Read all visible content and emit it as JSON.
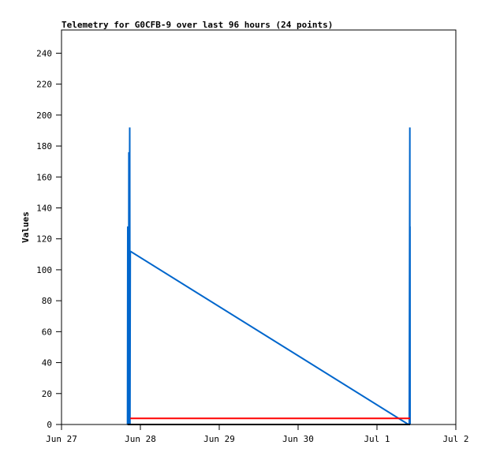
{
  "chart_data": {
    "type": "line",
    "title": "Telemetry for G0CFB-9 over last 96 hours (24 points)",
    "xlabel": "",
    "ylabel": "Values",
    "ylim": [
      0,
      255
    ],
    "yticks": [
      0,
      20,
      40,
      60,
      80,
      100,
      120,
      140,
      160,
      180,
      200,
      220,
      240
    ],
    "xlim": [
      "Jun 27 00:00",
      "Jul 2 00:00"
    ],
    "xticks": [
      {
        "label": "Jun 27",
        "t": "Jun 27 00:00"
      },
      {
        "label": "Jun 28",
        "t": "Jun 28 00:00"
      },
      {
        "label": "Jun 29",
        "t": "Jun 29 00:00"
      },
      {
        "label": "Jun 30",
        "t": "Jun 30 00:00"
      },
      {
        "label": "Jul 1",
        "t": "Jul 1 00:00"
      },
      {
        "label": "Jul 2",
        "t": "Jul 2 00:00"
      }
    ],
    "grid": false,
    "series": [
      {
        "color": "#0066cc",
        "points": [
          [
            "Jun 27 20:05",
            0
          ],
          [
            "Jun 27 20:10",
            128
          ],
          [
            "Jun 27 20:15",
            0
          ],
          [
            "Jun 27 20:20",
            112
          ],
          [
            "Jun 27 20:25",
            0
          ],
          [
            "Jun 27 20:30",
            176
          ],
          [
            "Jun 27 20:35",
            0
          ],
          [
            "Jun 27 20:40",
            112
          ],
          [
            "Jun 27 20:45",
            192
          ],
          [
            "Jun 27 20:50",
            0
          ],
          [
            "Jun 27 20:55",
            112
          ],
          [
            "Jul 1 09:36",
            0
          ],
          [
            "Jul 1 09:50",
            0
          ],
          [
            "Jul 1 10:00",
            192
          ],
          [
            "Jul 1 10:01",
            0
          ],
          [
            "Jul 1 10:02",
            128
          ],
          [
            "Jul 1 10:03",
            32
          ],
          [
            "Jul 1 10:04",
            128
          ],
          [
            "Jul 1 10:05",
            0
          ]
        ]
      },
      {
        "color": "#ff0000",
        "points": [
          [
            "Jun 27 20:55",
            4
          ],
          [
            "Jul 1 10:05",
            4
          ]
        ]
      },
      {
        "color": "#000000",
        "points": [
          [
            "Jun 27 20:05",
            0
          ],
          [
            "Jul 1 10:05",
            0
          ]
        ]
      }
    ]
  }
}
